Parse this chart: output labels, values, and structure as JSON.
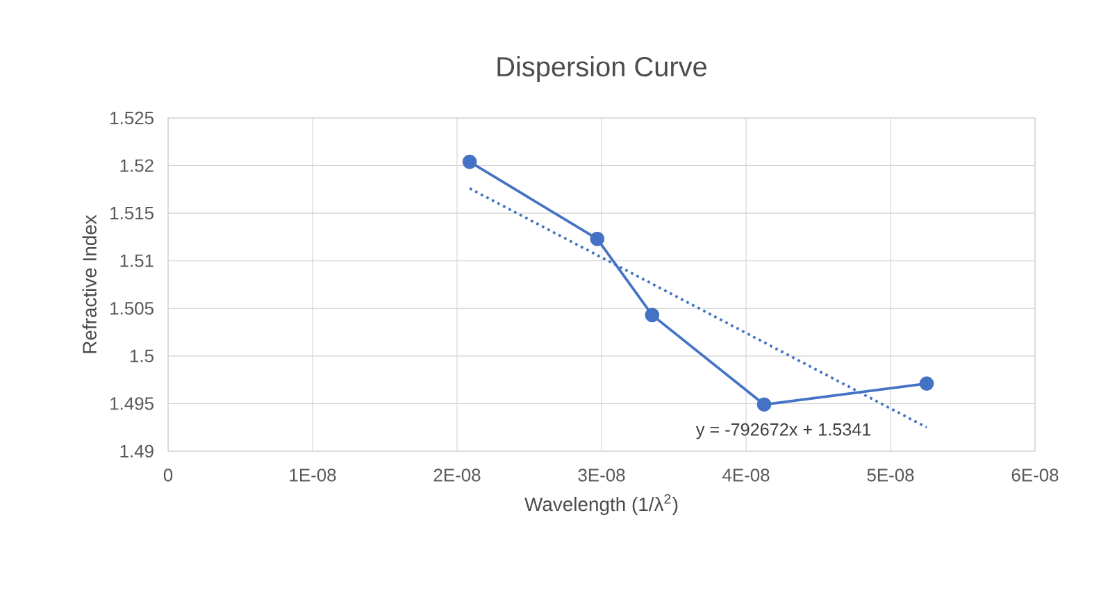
{
  "chart_data": {
    "type": "line",
    "title": "Dispersion Curve",
    "xlabel": "Wavelength (1/λ$^{2}$)",
    "ylabel": "Refractive Index",
    "series": [
      {
        "color": "#4472c4",
        "x": [
          2.087e-08,
          2.97e-08,
          3.35e-08,
          4.125e-08,
          5.25e-08
        ],
        "values": [
          1.5204,
          1.5123,
          1.5043,
          1.4949,
          1.4971
        ],
        "marker": "circle",
        "line_style": "solid"
      },
      {
        "type": "line",
        "color": "#4472c4",
        "x": [
          2.087e-08,
          5.25e-08
        ],
        "values": [
          1.5176,
          1.4925
        ],
        "marker": "none",
        "line_style": "dotted"
      }
    ],
    "annotations": [
      "y = -792672x + 1.5341"
    ],
    "xlim": [
      0,
      6e-08
    ],
    "xticks": [
      0,
      {
        "value": 1e-08,
        "label": "1E-08"
      },
      {
        "value": 2e-08,
        "label": "2E-08"
      },
      {
        "value": 3e-08,
        "label": "3E-08"
      },
      {
        "value": 4e-08,
        "label": "4E-08"
      },
      {
        "value": 5e-08,
        "label": "5E-08"
      },
      {
        "value": 6e-08,
        "label": "6E-08"
      }
    ],
    "ylim": [
      1.49,
      1.525
    ],
    "yticks": [
      1.49,
      1.495,
      1.5,
      1.505,
      1.51,
      1.515,
      1.52,
      1.525
    ],
    "grid": true
  }
}
